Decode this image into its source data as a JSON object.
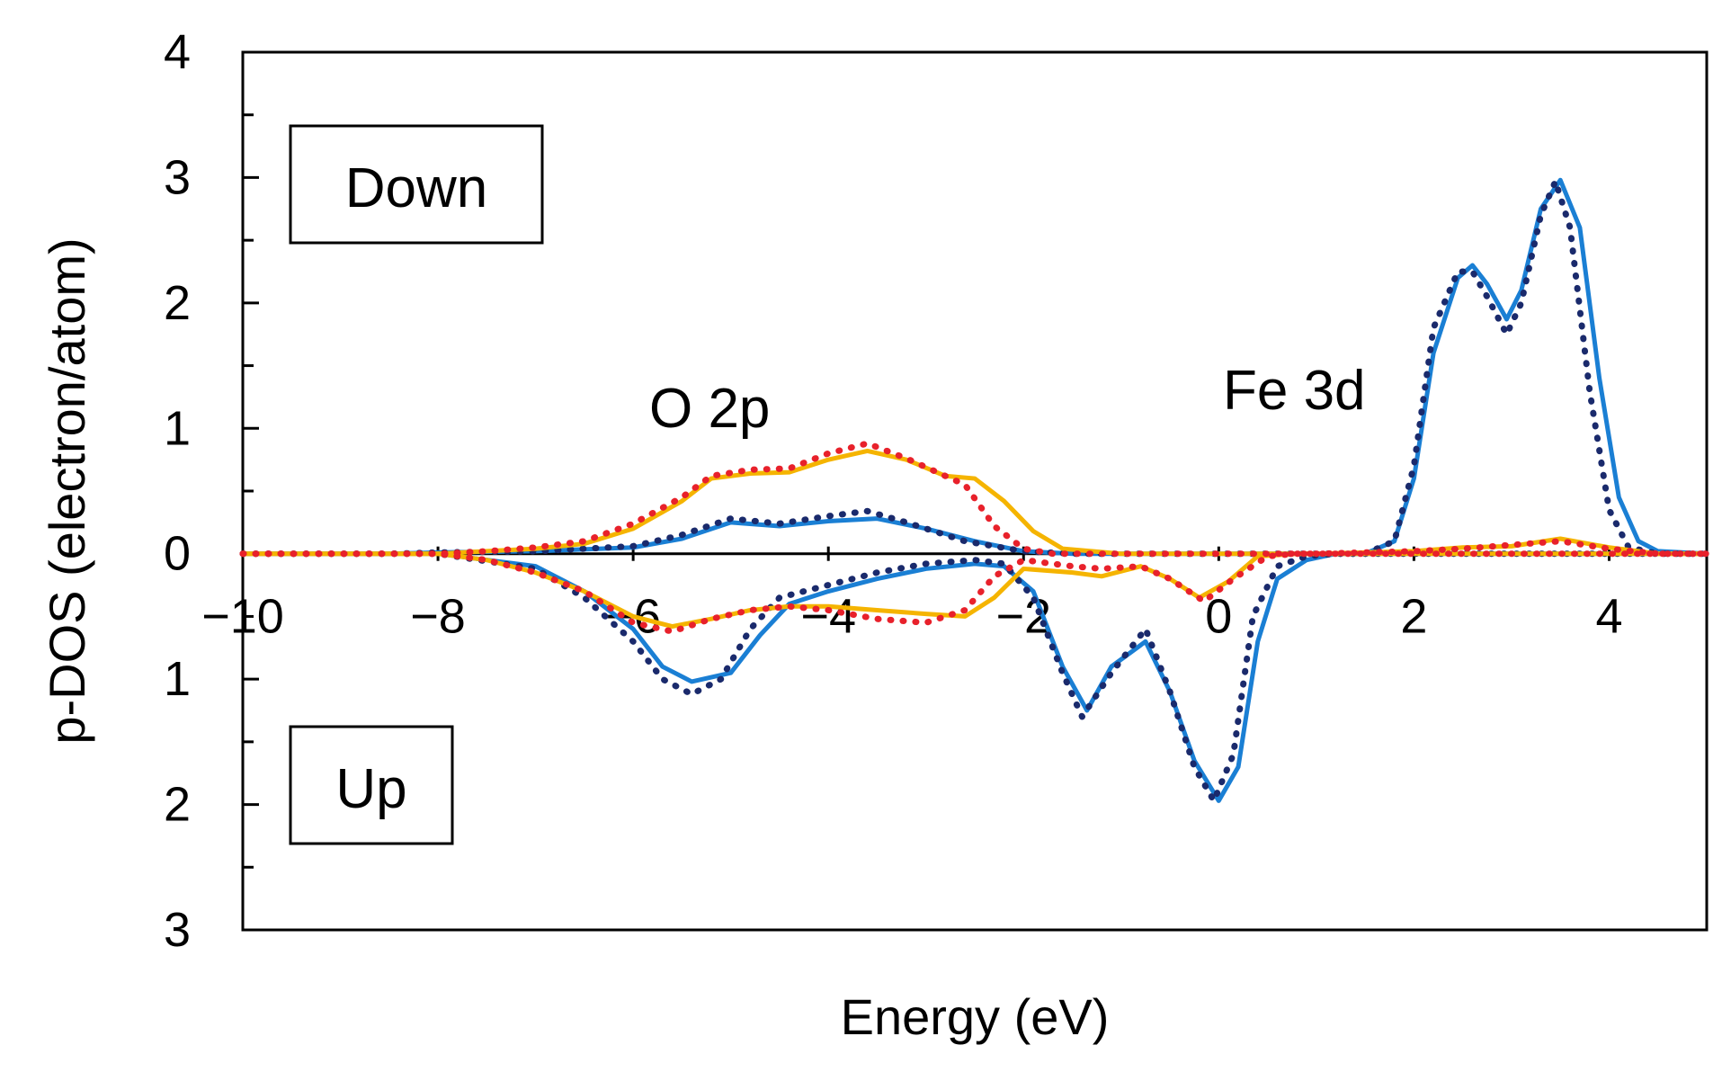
{
  "chart_data": {
    "type": "line",
    "title": "",
    "xlabel": "Energy (eV)",
    "ylabel": "p-DOS (electron/atom)",
    "xlim": [
      -10,
      5
    ],
    "ylim": [
      -3,
      4
    ],
    "grid": false,
    "y_scale": "up-spin plotted downward (negative), down-spin upward (positive)",
    "x_ticks": [
      -10,
      -8,
      -6,
      -4,
      -2,
      0,
      2,
      4
    ],
    "x_tick_labels": [
      "−10",
      "−8",
      "−6",
      "−4",
      "−2",
      "0",
      "2",
      "4"
    ],
    "y_ticks": [
      4,
      3,
      2,
      1,
      0,
      -1,
      -2,
      -3
    ],
    "y_tick_labels": [
      "4",
      "3",
      "2",
      "1",
      "0",
      "1",
      "2",
      "3"
    ],
    "labels": {
      "down_box": "Down",
      "up_box": "Up",
      "o2p": "O 2p",
      "fe3d": "Fe 3d"
    },
    "series": [
      {
        "name": "Fe 3d (solid)",
        "color": "#1a7fd4",
        "style": "solid",
        "points": [
          [
            -10,
            0
          ],
          [
            -8.5,
            0
          ],
          [
            -8,
            0.01
          ],
          [
            -7,
            0.02
          ],
          [
            -6,
            0.05
          ],
          [
            -5.5,
            0.12
          ],
          [
            -5,
            0.25
          ],
          [
            -4.5,
            0.22
          ],
          [
            -4,
            0.26
          ],
          [
            -3.5,
            0.28
          ],
          [
            -3,
            0.2
          ],
          [
            -2.5,
            0.1
          ],
          [
            -2,
            0.02
          ],
          [
            -1.5,
            0
          ],
          [
            -1,
            0
          ],
          [
            0,
            0
          ],
          [
            0.5,
            0
          ],
          [
            1,
            0
          ],
          [
            1.5,
            0
          ],
          [
            1.8,
            0.1
          ],
          [
            2,
            0.6
          ],
          [
            2.2,
            1.6
          ],
          [
            2.45,
            2.2
          ],
          [
            2.6,
            2.3
          ],
          [
            2.75,
            2.15
          ],
          [
            2.95,
            1.87
          ],
          [
            3.1,
            2.1
          ],
          [
            3.3,
            2.75
          ],
          [
            3.5,
            2.98
          ],
          [
            3.7,
            2.6
          ],
          [
            3.9,
            1.4
          ],
          [
            4.1,
            0.45
          ],
          [
            4.3,
            0.1
          ],
          [
            4.5,
            0.02
          ],
          [
            5,
            0
          ],
          [
            -10,
            0
          ],
          [
            -8,
            0
          ],
          [
            -7,
            -0.1
          ],
          [
            -6.5,
            -0.3
          ],
          [
            -6,
            -0.6
          ],
          [
            -5.7,
            -0.9
          ],
          [
            -5.4,
            -1.02
          ],
          [
            -5.0,
            -0.95
          ],
          [
            -4.7,
            -0.65
          ],
          [
            -4.4,
            -0.4
          ],
          [
            -4,
            -0.3
          ],
          [
            -3.5,
            -0.2
          ],
          [
            -3,
            -0.12
          ],
          [
            -2.5,
            -0.08
          ],
          [
            -2.2,
            -0.1
          ],
          [
            -1.9,
            -0.3
          ],
          [
            -1.6,
            -0.9
          ],
          [
            -1.35,
            -1.25
          ],
          [
            -1.1,
            -0.9
          ],
          [
            -0.75,
            -0.7
          ],
          [
            -0.5,
            -1.1
          ],
          [
            -0.25,
            -1.65
          ],
          [
            0,
            -1.97
          ],
          [
            0.2,
            -1.7
          ],
          [
            0.4,
            -0.7
          ],
          [
            0.6,
            -0.2
          ],
          [
            0.9,
            -0.05
          ],
          [
            1.2,
            0
          ],
          [
            5,
            0
          ]
        ]
      },
      {
        "name": "Fe 3d (dotted)",
        "color": "#1a2a6c",
        "style": "dotted",
        "points": [
          [
            -10,
            0
          ],
          [
            -8.5,
            0
          ],
          [
            -8,
            0.01
          ],
          [
            -7,
            0.02
          ],
          [
            -6,
            0.06
          ],
          [
            -5.5,
            0.15
          ],
          [
            -5,
            0.28
          ],
          [
            -4.5,
            0.24
          ],
          [
            -4,
            0.3
          ],
          [
            -3.6,
            0.34
          ],
          [
            -3.2,
            0.25
          ],
          [
            -2.6,
            0.1
          ],
          [
            -2,
            0.02
          ],
          [
            -1.5,
            0
          ],
          [
            0,
            0
          ],
          [
            1,
            0
          ],
          [
            1.5,
            0
          ],
          [
            1.8,
            0.1
          ],
          [
            2,
            0.7
          ],
          [
            2.2,
            1.8
          ],
          [
            2.45,
            2.25
          ],
          [
            2.6,
            2.25
          ],
          [
            2.75,
            2.05
          ],
          [
            2.95,
            1.75
          ],
          [
            3.1,
            2.0
          ],
          [
            3.3,
            2.7
          ],
          [
            3.45,
            2.97
          ],
          [
            3.6,
            2.6
          ],
          [
            3.8,
            1.3
          ],
          [
            4.0,
            0.35
          ],
          [
            4.2,
            0.05
          ],
          [
            4.5,
            0
          ],
          [
            5,
            0
          ],
          [
            -10,
            0
          ],
          [
            -8,
            0
          ],
          [
            -7,
            -0.12
          ],
          [
            -6.5,
            -0.35
          ],
          [
            -6,
            -0.7
          ],
          [
            -5.7,
            -1.0
          ],
          [
            -5.4,
            -1.12
          ],
          [
            -5.1,
            -1.0
          ],
          [
            -4.8,
            -0.6
          ],
          [
            -4.5,
            -0.35
          ],
          [
            -4,
            -0.25
          ],
          [
            -3.5,
            -0.15
          ],
          [
            -3,
            -0.08
          ],
          [
            -2.5,
            -0.05
          ],
          [
            -2.2,
            -0.08
          ],
          [
            -1.9,
            -0.35
          ],
          [
            -1.6,
            -0.95
          ],
          [
            -1.4,
            -1.3
          ],
          [
            -1.1,
            -0.95
          ],
          [
            -0.75,
            -0.6
          ],
          [
            -0.5,
            -1.1
          ],
          [
            -0.25,
            -1.7
          ],
          [
            -0.05,
            -1.97
          ],
          [
            0.15,
            -1.6
          ],
          [
            0.35,
            -0.5
          ],
          [
            0.6,
            -0.1
          ],
          [
            0.9,
            -0.02
          ],
          [
            1.2,
            0
          ],
          [
            5,
            0
          ]
        ]
      },
      {
        "name": "O 2p (solid)",
        "color": "#f5b400",
        "style": "solid",
        "points": [
          [
            -10,
            0
          ],
          [
            -8,
            0
          ],
          [
            -7.5,
            0.02
          ],
          [
            -7,
            0.04
          ],
          [
            -6.5,
            0.08
          ],
          [
            -6,
            0.2
          ],
          [
            -5.5,
            0.42
          ],
          [
            -5.2,
            0.6
          ],
          [
            -4.8,
            0.64
          ],
          [
            -4.4,
            0.65
          ],
          [
            -4,
            0.75
          ],
          [
            -3.6,
            0.82
          ],
          [
            -3.2,
            0.75
          ],
          [
            -2.8,
            0.62
          ],
          [
            -2.5,
            0.6
          ],
          [
            -2.2,
            0.42
          ],
          [
            -1.9,
            0.18
          ],
          [
            -1.6,
            0.04
          ],
          [
            -1,
            0
          ],
          [
            0,
            0
          ],
          [
            1,
            0
          ],
          [
            2,
            0.02
          ],
          [
            2.5,
            0.05
          ],
          [
            3,
            0.06
          ],
          [
            3.5,
            0.12
          ],
          [
            4,
            0.05
          ],
          [
            4.5,
            0
          ],
          [
            5,
            0
          ],
          [
            -10,
            0
          ],
          [
            -8,
            0
          ],
          [
            -7.5,
            -0.05
          ],
          [
            -7,
            -0.15
          ],
          [
            -6.5,
            -0.3
          ],
          [
            -6,
            -0.5
          ],
          [
            -5.6,
            -0.58
          ],
          [
            -5.2,
            -0.52
          ],
          [
            -4.8,
            -0.45
          ],
          [
            -4.4,
            -0.42
          ],
          [
            -4,
            -0.42
          ],
          [
            -3.5,
            -0.45
          ],
          [
            -3,
            -0.48
          ],
          [
            -2.6,
            -0.5
          ],
          [
            -2.3,
            -0.35
          ],
          [
            -2.0,
            -0.12
          ],
          [
            -1.5,
            -0.15
          ],
          [
            -1.2,
            -0.18
          ],
          [
            -0.8,
            -0.1
          ],
          [
            -0.5,
            -0.2
          ],
          [
            -0.2,
            -0.35
          ],
          [
            0.1,
            -0.22
          ],
          [
            0.4,
            -0.02
          ],
          [
            0.8,
            0
          ],
          [
            5,
            0
          ]
        ]
      },
      {
        "name": "O 2p (dotted)",
        "color": "#e8212b",
        "style": "dotted",
        "points": [
          [
            -10,
            0
          ],
          [
            -8,
            0
          ],
          [
            -7.5,
            0.02
          ],
          [
            -7,
            0.05
          ],
          [
            -6.5,
            0.1
          ],
          [
            -6,
            0.24
          ],
          [
            -5.5,
            0.45
          ],
          [
            -5.2,
            0.62
          ],
          [
            -4.8,
            0.67
          ],
          [
            -4.4,
            0.68
          ],
          [
            -4,
            0.8
          ],
          [
            -3.6,
            0.88
          ],
          [
            -3.2,
            0.76
          ],
          [
            -2.8,
            0.62
          ],
          [
            -2.6,
            0.55
          ],
          [
            -2.3,
            0.22
          ],
          [
            -2.0,
            0.04
          ],
          [
            -1.7,
            0
          ],
          [
            0,
            0
          ],
          [
            1,
            0
          ],
          [
            2,
            0.02
          ],
          [
            2.5,
            0.04
          ],
          [
            3,
            0.07
          ],
          [
            3.5,
            0.1
          ],
          [
            4,
            0.04
          ],
          [
            4.5,
            0
          ],
          [
            5,
            0
          ],
          [
            -10,
            0
          ],
          [
            -8,
            0
          ],
          [
            -7.5,
            -0.05
          ],
          [
            -7,
            -0.15
          ],
          [
            -6.5,
            -0.3
          ],
          [
            -6,
            -0.55
          ],
          [
            -5.6,
            -0.62
          ],
          [
            -5.2,
            -0.52
          ],
          [
            -4.8,
            -0.45
          ],
          [
            -4.4,
            -0.42
          ],
          [
            -4,
            -0.45
          ],
          [
            -3.5,
            -0.52
          ],
          [
            -3,
            -0.55
          ],
          [
            -2.6,
            -0.45
          ],
          [
            -2.3,
            -0.18
          ],
          [
            -2.0,
            -0.05
          ],
          [
            -1.5,
            -0.1
          ],
          [
            -1.2,
            -0.12
          ],
          [
            -0.8,
            -0.1
          ],
          [
            -0.5,
            -0.2
          ],
          [
            -0.15,
            -0.38
          ],
          [
            0.15,
            -0.2
          ],
          [
            0.5,
            -0.02
          ],
          [
            0.8,
            0
          ],
          [
            5,
            0
          ]
        ]
      }
    ]
  }
}
